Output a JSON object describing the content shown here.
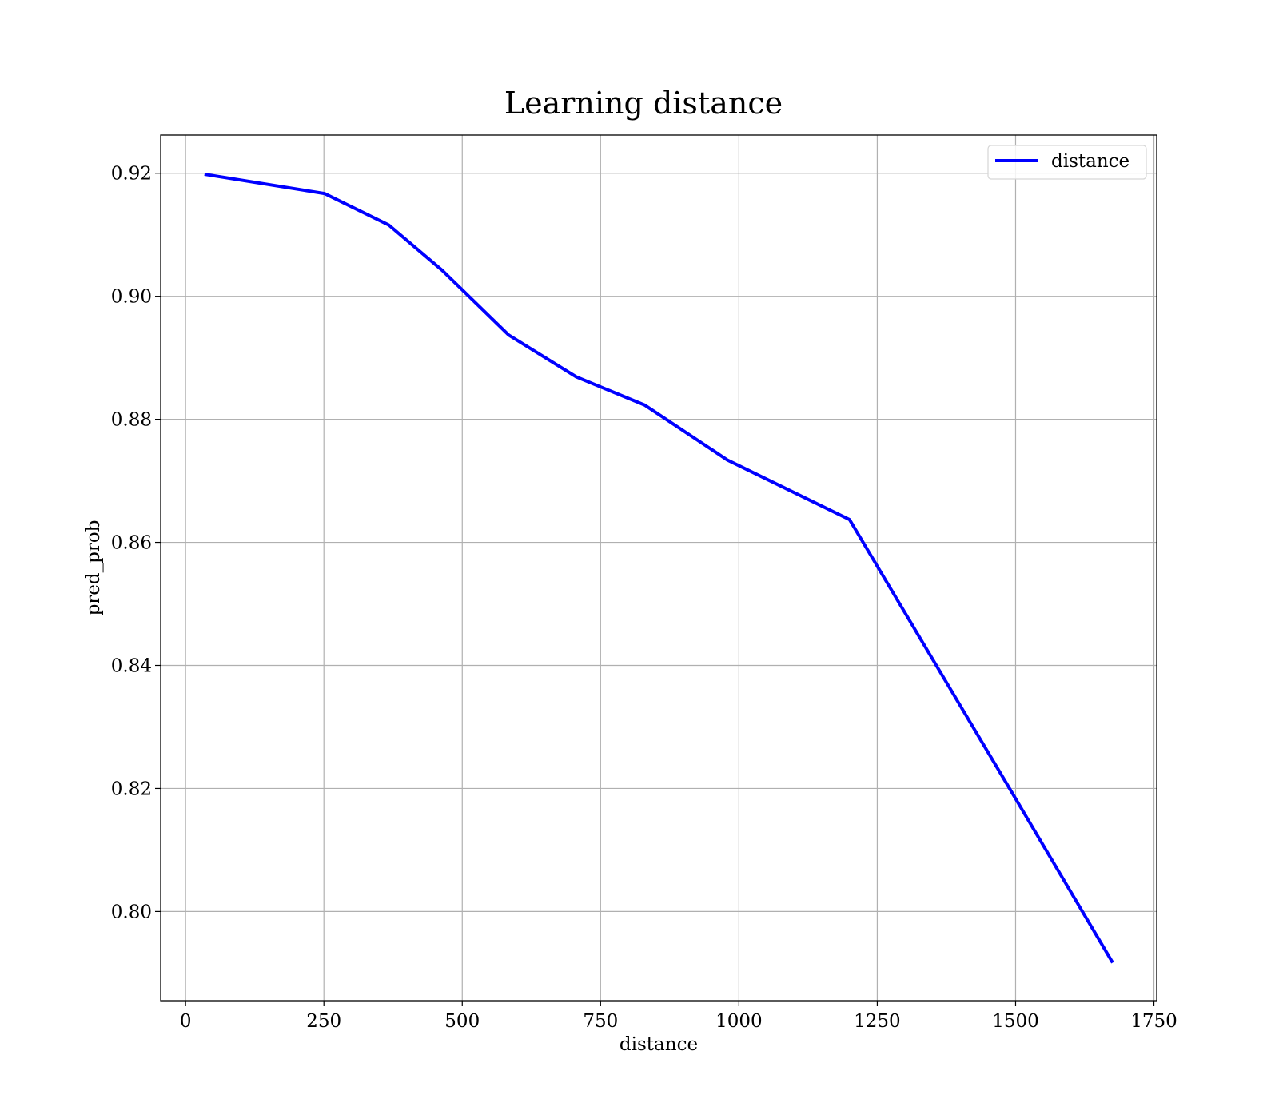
{
  "chart_data": {
    "type": "line",
    "title": "Learning distance",
    "xlabel": "distance",
    "ylabel": "pred_prob",
    "xlim": [
      -45,
      1755
    ],
    "ylim": [
      0.7855,
      0.9262
    ],
    "xticks": [
      0,
      250,
      500,
      750,
      1000,
      1250,
      1500,
      1750
    ],
    "yticks": [
      0.8,
      0.82,
      0.84,
      0.86,
      0.88,
      0.9,
      0.92
    ],
    "xtick_labels": [
      "0",
      "250",
      "500",
      "750",
      "1000",
      "1250",
      "1500",
      "1750"
    ],
    "ytick_labels": [
      "0.80",
      "0.82",
      "0.84",
      "0.86",
      "0.88",
      "0.90",
      "0.92"
    ],
    "grid": true,
    "legend_position": "top-right",
    "series": [
      {
        "name": "distance",
        "color": "#0000ff",
        "x": [
          37,
          251,
          367,
          464,
          584,
          706,
          830,
          979,
          1200,
          1497,
          1674
        ],
        "y": [
          0.9198,
          0.9167,
          0.9116,
          0.9042,
          0.8937,
          0.8869,
          0.8823,
          0.8734,
          0.8637,
          0.8188,
          0.7919
        ]
      }
    ]
  }
}
